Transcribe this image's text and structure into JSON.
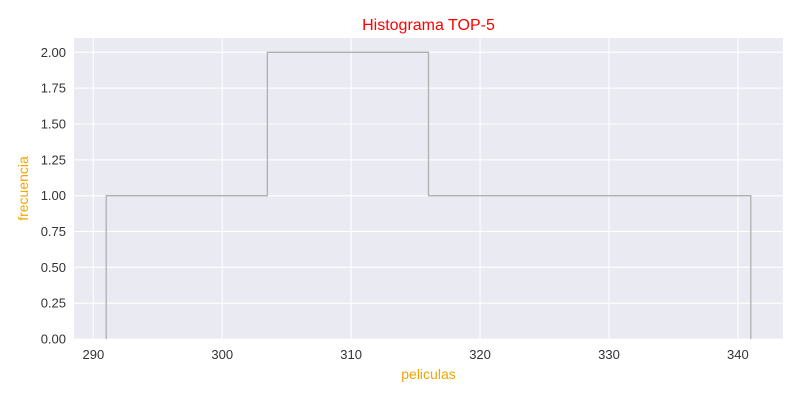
{
  "chart_data": {
    "type": "histogram",
    "title": "Histograma TOP-5",
    "xlabel": "peliculas",
    "ylabel": "frecuencia",
    "bin_edges": [
      291,
      303.5,
      316,
      328.5,
      341
    ],
    "counts": [
      1,
      2,
      1,
      1
    ],
    "xlim": [
      288.5,
      343.5
    ],
    "ylim": [
      0,
      2.1
    ],
    "xticks": [
      290,
      300,
      310,
      320,
      330,
      340
    ],
    "yticks": [
      0.0,
      0.25,
      0.5,
      0.75,
      1.0,
      1.25,
      1.5,
      1.75,
      2.0
    ],
    "xtick_labels": [
      "290",
      "300",
      "310",
      "320",
      "330",
      "340"
    ],
    "ytick_labels": [
      "0.00",
      "0.25",
      "0.50",
      "0.75",
      "1.00",
      "1.25",
      "1.50",
      "1.75",
      "2.00"
    ],
    "histtype": "step",
    "grid": true,
    "colors": {
      "title": "#ff0000",
      "axis_label": "#f0a500",
      "plot_background": "#eaeaf2",
      "grid": "#ffffff",
      "step_line": "#b0b0b0"
    }
  }
}
